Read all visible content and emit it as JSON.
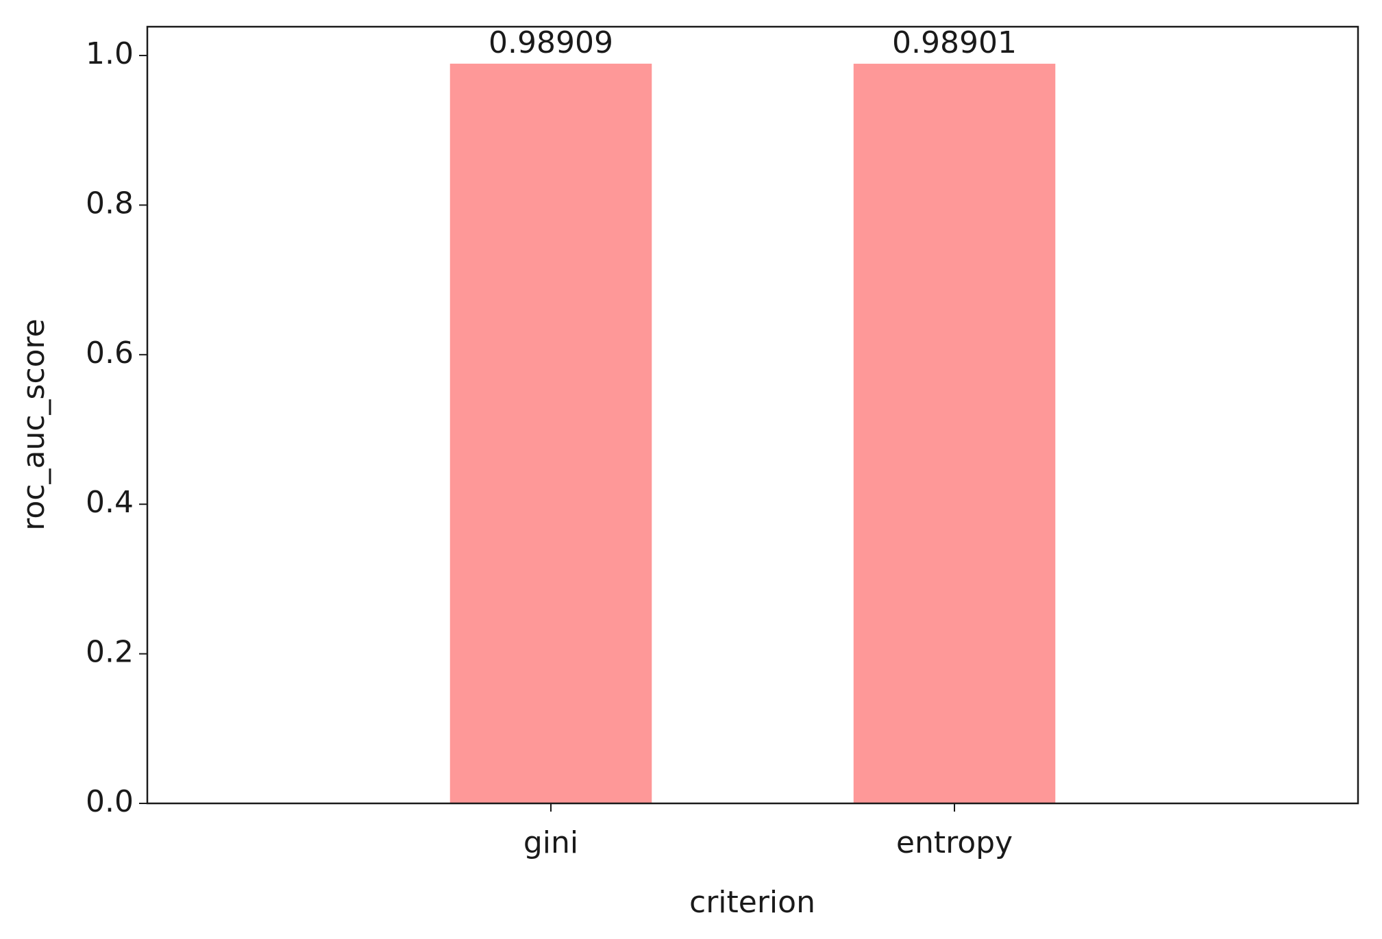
{
  "chart_data": {
    "type": "bar",
    "x_label": "criterion",
    "y_label": "roc_auc_score",
    "categories": [
      "gini",
      "entropy"
    ],
    "values": [
      0.98909,
      0.98901
    ],
    "color": "#fe9898",
    "ylim": [
      0,
      1.0385
    ],
    "yticks": [
      {
        "value": 0,
        "label": "0.0"
      },
      0.2,
      0.4,
      0.6,
      0.8,
      {
        "value": 1,
        "label": "1.0"
      }
    ],
    "grid": false
  }
}
